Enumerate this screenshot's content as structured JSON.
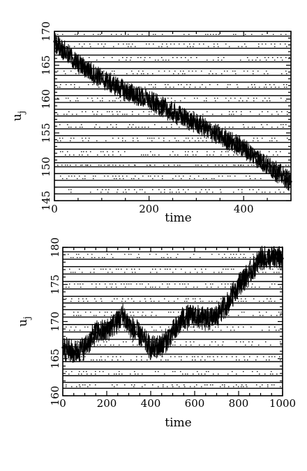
{
  "chart_data": [
    {
      "type": "line",
      "xlabel": "time",
      "ylabel": "u",
      "ylabel_sub": "j",
      "xlim": [
        0,
        500
      ],
      "ylim": [
        145,
        170
      ],
      "xticks": [
        "0",
        "200",
        "400"
      ],
      "yticks": [
        "145",
        "150",
        "155",
        "160",
        "165",
        "170"
      ],
      "level_lines": [
        146,
        147,
        148,
        149,
        150,
        150.6,
        151.5,
        152.6,
        153.6,
        154.6,
        155.6,
        156.6,
        157.5,
        158.5,
        159.5,
        160.5,
        161.5,
        162.5,
        163.5,
        164.5,
        165.5,
        166.5,
        167.5,
        168.5,
        169.3
      ],
      "series": [
        {
          "x": [
            0,
            50,
            100,
            150,
            200,
            250,
            300,
            350,
            400,
            450,
            500
          ],
          "values": [
            168.5,
            165.2,
            163.0,
            161.2,
            159.8,
            158.0,
            156.4,
            154.5,
            152.8,
            150.2,
            147.8
          ]
        }
      ]
    },
    {
      "type": "line",
      "xlabel": "time",
      "ylabel": "u",
      "ylabel_sub": "j",
      "xlim": [
        0,
        1000
      ],
      "ylim": [
        160,
        180
      ],
      "xticks": [
        "0",
        "200",
        "400",
        "600",
        "800",
        "1000"
      ],
      "yticks": [
        "160",
        "165",
        "170",
        "175",
        "180"
      ],
      "level_lines": [
        161,
        161.8,
        162.7,
        163.6,
        164.6,
        165.6,
        166.6,
        167.6,
        168.6,
        169.6,
        170.6,
        171.6,
        172.5,
        173.4,
        174.4,
        175.4,
        176.4,
        177.4,
        178.4,
        179.4
      ],
      "series": [
        {
          "x": [
            0,
            50,
            100,
            150,
            200,
            250,
            275,
            300,
            350,
            400,
            450,
            500,
            550,
            600,
            650,
            700,
            750,
            800,
            850,
            900,
            950,
            1000
          ],
          "values": [
            166.5,
            165.8,
            166.5,
            168.5,
            168.8,
            170.0,
            171.0,
            169.5,
            168.2,
            166.4,
            166.8,
            168.5,
            170.5,
            170.8,
            170.2,
            170.7,
            172.5,
            175.0,
            176.5,
            178.5,
            178.6,
            178.5
          ]
        }
      ]
    }
  ]
}
